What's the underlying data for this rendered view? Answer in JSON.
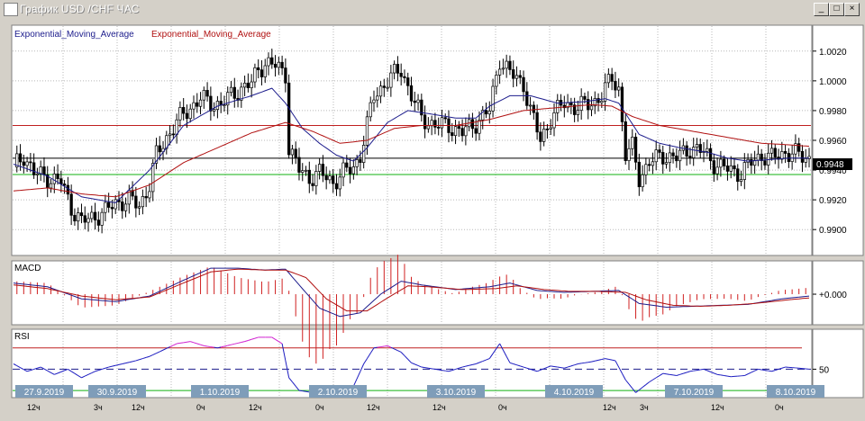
{
  "window": {
    "title": "График USD /CHF ЧАС",
    "controls": {
      "minimize": "_",
      "maximize": "□",
      "close": "×"
    }
  },
  "chart_data": {
    "type": "candlestick",
    "symbol": "USD/CHF",
    "timeframe": "H1",
    "main": {
      "indicator_labels": [
        "Exponential_Moving_Average",
        "Exponential_Moving_Average"
      ],
      "indicator_colors": [
        "#1c1c8c",
        "#b01010"
      ],
      "ylim": [
        0.9885,
        1.0035
      ],
      "y_ticks": [
        "1.0020",
        "1.0000",
        "0.9980",
        "0.9960",
        "0.9940",
        "0.9920",
        "0.9900"
      ],
      "current_price": "0.9948",
      "current_price_value": 0.9948,
      "hlines": [
        {
          "value": 0.997,
          "color": "#c02020"
        },
        {
          "value": 0.9937,
          "color": "#10b010"
        },
        {
          "value": 0.9948,
          "color": "#000000"
        }
      ],
      "close_path": [
        [
          0,
          0.9942
        ],
        [
          3,
          0.995
        ],
        [
          6,
          0.9938
        ],
        [
          10,
          0.9935
        ],
        [
          14,
          0.9932
        ],
        [
          17,
          0.9915
        ],
        [
          20,
          0.9905
        ],
        [
          23,
          0.9908
        ],
        [
          27,
          0.9912
        ],
        [
          30,
          0.9918
        ],
        [
          34,
          0.992
        ],
        [
          37,
          0.9916
        ],
        [
          40,
          0.993
        ],
        [
          42,
          0.995
        ],
        [
          45,
          0.9962
        ],
        [
          48,
          0.9972
        ],
        [
          51,
          0.998
        ],
        [
          55,
          0.9988
        ],
        [
          58,
          0.9985
        ],
        [
          61,
          0.9984
        ],
        [
          64,
          0.999
        ],
        [
          67,
          0.9995
        ],
        [
          70,
          0.9998
        ],
        [
          72,
          1.0008
        ],
        [
          74,
          1.0012
        ],
        [
          77,
          1.001
        ],
        [
          80,
          1.0005
        ],
        [
          81,
          0.9955
        ],
        [
          84,
          0.994
        ],
        [
          87,
          0.9935
        ],
        [
          90,
          0.9938
        ],
        [
          94,
          0.9932
        ],
        [
          97,
          0.9938
        ],
        [
          100,
          0.9942
        ],
        [
          102,
          0.995
        ],
        [
          104,
          0.997
        ],
        [
          106,
          0.999
        ],
        [
          110,
          1.0
        ],
        [
          114,
          1.0008
        ],
        [
          117,
          0.999
        ],
        [
          120,
          0.9975
        ],
        [
          124,
          0.997
        ],
        [
          128,
          0.997
        ],
        [
          132,
          0.9965
        ],
        [
          136,
          0.9972
        ],
        [
          140,
          0.998
        ],
        [
          143,
          1.0015
        ],
        [
          146,
          1.0005
        ],
        [
          150,
          0.9998
        ],
        [
          152,
          0.998
        ],
        [
          155,
          0.996
        ],
        [
          158,
          0.9975
        ],
        [
          162,
          0.9985
        ],
        [
          166,
          0.9982
        ],
        [
          170,
          0.9985
        ],
        [
          173,
          0.999
        ],
        [
          176,
          1.0002
        ],
        [
          178,
          0.9995
        ],
        [
          180,
          0.995
        ],
        [
          182,
          0.9955
        ],
        [
          184,
          0.9935
        ],
        [
          187,
          0.9945
        ],
        [
          191,
          0.995
        ],
        [
          195,
          0.9948
        ],
        [
          199,
          0.9955
        ],
        [
          203,
          0.9952
        ],
        [
          206,
          0.9945
        ],
        [
          208,
          0.9942
        ],
        [
          211,
          0.994
        ],
        [
          214,
          0.9938
        ],
        [
          217,
          0.9945
        ],
        [
          220,
          0.995
        ],
        [
          223,
          0.9948
        ],
        [
          227,
          0.9952
        ],
        [
          231,
          0.995
        ],
        [
          234,
          0.9948
        ]
      ],
      "ema_blue": [
        [
          0,
          0.9944
        ],
        [
          10,
          0.9936
        ],
        [
          20,
          0.9922
        ],
        [
          30,
          0.9918
        ],
        [
          40,
          0.994
        ],
        [
          50,
          0.997
        ],
        [
          60,
          0.9983
        ],
        [
          70,
          0.999
        ],
        [
          76,
          0.9995
        ],
        [
          80,
          0.9985
        ],
        [
          85,
          0.9968
        ],
        [
          90,
          0.9958
        ],
        [
          95,
          0.995
        ],
        [
          100,
          0.9946
        ],
        [
          104,
          0.9955
        ],
        [
          110,
          0.9972
        ],
        [
          116,
          0.998
        ],
        [
          122,
          0.9978
        ],
        [
          130,
          0.9975
        ],
        [
          136,
          0.9975
        ],
        [
          140,
          0.9983
        ],
        [
          146,
          0.999
        ],
        [
          152,
          0.999
        ],
        [
          160,
          0.9985
        ],
        [
          168,
          0.9986
        ],
        [
          174,
          0.9988
        ],
        [
          178,
          0.9985
        ],
        [
          184,
          0.9964
        ],
        [
          190,
          0.9958
        ],
        [
          196,
          0.9955
        ],
        [
          204,
          0.9952
        ],
        [
          210,
          0.9948
        ],
        [
          216,
          0.9946
        ],
        [
          222,
          0.9947
        ],
        [
          228,
          0.9948
        ],
        [
          234,
          0.9948
        ]
      ],
      "ema_red": [
        [
          0,
          0.9926
        ],
        [
          10,
          0.9928
        ],
        [
          20,
          0.9924
        ],
        [
          30,
          0.9922
        ],
        [
          40,
          0.993
        ],
        [
          50,
          0.9945
        ],
        [
          60,
          0.9955
        ],
        [
          70,
          0.9965
        ],
        [
          80,
          0.9972
        ],
        [
          88,
          0.9966
        ],
        [
          96,
          0.9958
        ],
        [
          104,
          0.996
        ],
        [
          112,
          0.9968
        ],
        [
          120,
          0.997
        ],
        [
          130,
          0.997
        ],
        [
          140,
          0.9974
        ],
        [
          150,
          0.998
        ],
        [
          160,
          0.9982
        ],
        [
          170,
          0.9984
        ],
        [
          176,
          0.9983
        ],
        [
          182,
          0.9976
        ],
        [
          190,
          0.997
        ],
        [
          200,
          0.9966
        ],
        [
          210,
          0.9962
        ],
        [
          220,
          0.9958
        ],
        [
          228,
          0.9957
        ],
        [
          234,
          0.9956
        ]
      ]
    },
    "macd": {
      "label": "MACD",
      "y_tick": "+0.000",
      "ylim": [
        -0.003,
        0.0032
      ],
      "macd_line": [
        [
          0,
          0.0012
        ],
        [
          10,
          0.0008
        ],
        [
          20,
          -0.0005
        ],
        [
          30,
          -0.0008
        ],
        [
          40,
          -0.0002
        ],
        [
          50,
          0.0015
        ],
        [
          58,
          0.0028
        ],
        [
          66,
          0.0028
        ],
        [
          74,
          0.0026
        ],
        [
          80,
          0.0027
        ],
        [
          84,
          0.001
        ],
        [
          90,
          -0.0015
        ],
        [
          96,
          -0.0024
        ],
        [
          102,
          -0.002
        ],
        [
          108,
          0.0
        ],
        [
          114,
          0.0014
        ],
        [
          120,
          0.001
        ],
        [
          130,
          0.0005
        ],
        [
          140,
          0.0008
        ],
        [
          146,
          0.0012
        ],
        [
          154,
          0.0004
        ],
        [
          162,
          0.0002
        ],
        [
          170,
          0.0003
        ],
        [
          178,
          0.0004
        ],
        [
          184,
          -0.001
        ],
        [
          192,
          -0.0014
        ],
        [
          200,
          -0.0013
        ],
        [
          208,
          -0.0012
        ],
        [
          216,
          -0.0011
        ],
        [
          226,
          -0.0005
        ],
        [
          234,
          -0.0002
        ]
      ],
      "signal_line": [
        [
          0,
          0.001
        ],
        [
          10,
          0.0006
        ],
        [
          20,
          -0.0002
        ],
        [
          30,
          -0.0006
        ],
        [
          40,
          -0.0003
        ],
        [
          50,
          0.0012
        ],
        [
          58,
          0.0024
        ],
        [
          66,
          0.0027
        ],
        [
          74,
          0.0026
        ],
        [
          80,
          0.0026
        ],
        [
          86,
          0.0018
        ],
        [
          92,
          -0.0005
        ],
        [
          98,
          -0.0018
        ],
        [
          104,
          -0.0018
        ],
        [
          110,
          -0.0004
        ],
        [
          116,
          0.0009
        ],
        [
          122,
          0.0008
        ],
        [
          132,
          0.0005
        ],
        [
          142,
          0.0006
        ],
        [
          148,
          0.0009
        ],
        [
          156,
          0.0005
        ],
        [
          164,
          0.0003
        ],
        [
          172,
          0.0003
        ],
        [
          180,
          0.0002
        ],
        [
          186,
          -0.0006
        ],
        [
          194,
          -0.0012
        ],
        [
          202,
          -0.0013
        ],
        [
          210,
          -0.0012
        ],
        [
          218,
          -0.001
        ],
        [
          228,
          -0.0006
        ],
        [
          234,
          -0.0004
        ]
      ]
    },
    "rsi": {
      "label": "RSI",
      "y_tick": "50",
      "ylim": [
        25,
        85
      ],
      "upper": 70,
      "lower": 30,
      "line": [
        [
          0,
          55
        ],
        [
          4,
          48
        ],
        [
          8,
          52
        ],
        [
          12,
          45
        ],
        [
          16,
          50
        ],
        [
          20,
          42
        ],
        [
          24,
          48
        ],
        [
          28,
          52
        ],
        [
          32,
          55
        ],
        [
          36,
          58
        ],
        [
          40,
          62
        ],
        [
          44,
          68
        ],
        [
          48,
          74
        ],
        [
          52,
          76
        ],
        [
          56,
          72
        ],
        [
          60,
          70
        ],
        [
          64,
          73
        ],
        [
          68,
          76
        ],
        [
          72,
          80
        ],
        [
          76,
          80
        ],
        [
          79,
          74
        ],
        [
          81,
          42
        ],
        [
          84,
          30
        ],
        [
          88,
          28
        ],
        [
          92,
          30
        ],
        [
          96,
          28
        ],
        [
          100,
          34
        ],
        [
          103,
          55
        ],
        [
          106,
          70
        ],
        [
          110,
          72
        ],
        [
          114,
          66
        ],
        [
          117,
          56
        ],
        [
          120,
          52
        ],
        [
          124,
          50
        ],
        [
          128,
          48
        ],
        [
          132,
          52
        ],
        [
          136,
          55
        ],
        [
          140,
          60
        ],
        [
          143,
          74
        ],
        [
          146,
          56
        ],
        [
          150,
          52
        ],
        [
          154,
          48
        ],
        [
          158,
          53
        ],
        [
          162,
          51
        ],
        [
          166,
          55
        ],
        [
          170,
          57
        ],
        [
          174,
          60
        ],
        [
          177,
          58
        ],
        [
          180,
          40
        ],
        [
          183,
          28
        ],
        [
          187,
          38
        ],
        [
          191,
          46
        ],
        [
          195,
          44
        ],
        [
          199,
          48
        ],
        [
          203,
          50
        ],
        [
          207,
          45
        ],
        [
          211,
          43
        ],
        [
          215,
          44
        ],
        [
          219,
          50
        ],
        [
          223,
          48
        ],
        [
          227,
          52
        ],
        [
          231,
          51
        ],
        [
          234,
          50
        ]
      ]
    },
    "x_dates": [
      "27.9.2019",
      "30.9.2019",
      "1.10.2019",
      "2.10.2019",
      "3.10.2019",
      "4.10.2019",
      "7.10.2019",
      "8.10.2019"
    ],
    "x_times": [
      "12ч",
      "3ч",
      "12ч",
      "0ч",
      "12ч",
      "0ч",
      "12ч",
      "12ч",
      "0ч",
      "12ч",
      "3ч",
      "12ч",
      "0ч"
    ]
  }
}
